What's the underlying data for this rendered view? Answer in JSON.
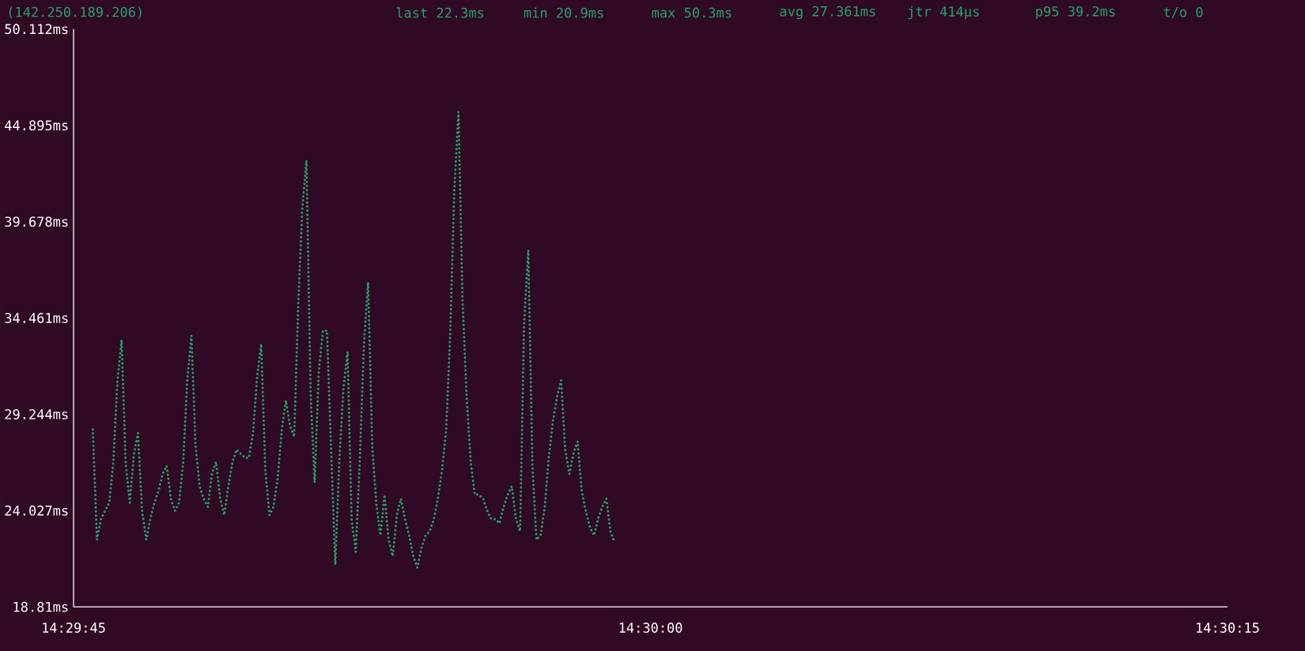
{
  "chart_data": {
    "type": "line",
    "xlim": [
      14.495833,
      14.504167
    ],
    "xticks": [
      {
        "value": 14.495833,
        "label": "14:29:45"
      },
      {
        "value": 14.5,
        "label": "14:30:00"
      },
      {
        "value": 14.504167,
        "label": "14:30:15"
      }
    ],
    "ylim": [
      18.81,
      50.112
    ],
    "yticks": [
      {
        "value": 18.81,
        "label": "18.81ms"
      },
      {
        "value": 24.027,
        "label": "24.027ms"
      },
      {
        "value": 29.244,
        "label": "29.244ms"
      },
      {
        "value": 34.461,
        "label": "34.461ms"
      },
      {
        "value": 39.678,
        "label": "39.678ms"
      },
      {
        "value": 44.895,
        "label": "44.895ms"
      },
      {
        "value": 50.112,
        "label": "50.112ms"
      }
    ],
    "x": [
      14.495972,
      14.496002,
      14.496031,
      14.496061,
      14.496091,
      14.49612,
      14.49615,
      14.49618,
      14.496209,
      14.496239,
      14.496269,
      14.496298,
      14.496328,
      14.496358,
      14.496387,
      14.496417,
      14.496447,
      14.496476,
      14.496506,
      14.496536,
      14.496565,
      14.496595,
      14.496625,
      14.496654,
      14.496684,
      14.496714,
      14.496743,
      14.496773,
      14.496803,
      14.496832,
      14.496862,
      14.496892,
      14.496921,
      14.496951,
      14.496981,
      14.49701,
      14.49704,
      14.49707,
      14.497099,
      14.497129,
      14.497159,
      14.497188,
      14.497218,
      14.497248,
      14.497277,
      14.497307,
      14.497337,
      14.497366,
      14.497396,
      14.497426,
      14.497456,
      14.497485,
      14.497515,
      14.497545,
      14.497574,
      14.497604,
      14.497634,
      14.497663,
      14.497693,
      14.497723,
      14.497752,
      14.497782,
      14.497812,
      14.497841,
      14.497871,
      14.497901,
      14.49793,
      14.49796,
      14.49799,
      14.498019,
      14.498049,
      14.498079,
      14.498108,
      14.498138,
      14.498168,
      14.498197,
      14.498227,
      14.498257,
      14.498286,
      14.498316,
      14.498346,
      14.498375,
      14.498405,
      14.498435,
      14.498464,
      14.498494,
      14.498524,
      14.498553,
      14.498583,
      14.498613,
      14.498642,
      14.498672,
      14.498702,
      14.498731,
      14.498761,
      14.498791,
      14.49882,
      14.49885,
      14.49888,
      14.498909,
      14.498939,
      14.498969,
      14.498998,
      14.499028,
      14.499058,
      14.499087,
      14.499117,
      14.499147,
      14.499176,
      14.499206,
      14.499236,
      14.499265,
      14.499295,
      14.499325,
      14.499354,
      14.499384,
      14.499414,
      14.499443,
      14.499473,
      14.499503,
      14.499532,
      14.499562,
      14.499592,
      14.499621,
      14.499651,
      14.499681,
      14.49971,
      14.49974
    ],
    "series": [
      {
        "name": "(142.250.189.206)",
        "color": "#26a269",
        "values": [
          28.43,
          22.45,
          23.57,
          24.02,
          24.46,
          26.67,
          31.06,
          33.28,
          26.62,
          24.46,
          27.11,
          28.23,
          24.02,
          22.45,
          23.57,
          24.46,
          25.12,
          26.01,
          26.45,
          24.67,
          24.02,
          24.46,
          26.67,
          31.06,
          33.5,
          27.56,
          25.35,
          24.67,
          24.23,
          26.01,
          26.67,
          24.67,
          23.79,
          25.35,
          26.67,
          27.34,
          27.11,
          26.89,
          26.89,
          28.23,
          31.28,
          33.05,
          26.21,
          23.79,
          24.23,
          25.78,
          28.43,
          29.99,
          28.64,
          28.02,
          35.26,
          40.36,
          43.0,
          30.4,
          25.55,
          31.56,
          33.78,
          33.78,
          27.36,
          21.1,
          26.67,
          30.65,
          32.63,
          23.57,
          21.79,
          26.89,
          33.04,
          36.41,
          27.56,
          24.46,
          22.68,
          24.89,
          22.45,
          21.56,
          23.79,
          24.67,
          23.57,
          22.68,
          21.56,
          20.94,
          22.01,
          22.68,
          22.91,
          23.57,
          24.67,
          26.21,
          28.43,
          33.53,
          41.43,
          45.63,
          35.46,
          30.16,
          26.62,
          24.89,
          24.89,
          24.67,
          24.02,
          23.57,
          23.57,
          23.34,
          24.23,
          24.89,
          25.35,
          23.57,
          22.91,
          34.19,
          38.14,
          26.45,
          22.45,
          22.68,
          24.23,
          26.89,
          28.87,
          30.19,
          31.09,
          27.31,
          26.01,
          27.11,
          27.77,
          25.12,
          24.02,
          23.13,
          22.68,
          23.57,
          24.23,
          24.67,
          22.91,
          22.3
        ]
      }
    ],
    "line_style": "dotted",
    "legend": "top left",
    "annotations": [
      "last 22.3ms",
      "min 20.9ms",
      "max 50.3ms",
      "avg 27.361ms",
      "jtr 414µs",
      "p95 39.2ms",
      "t/o 0"
    ]
  }
}
